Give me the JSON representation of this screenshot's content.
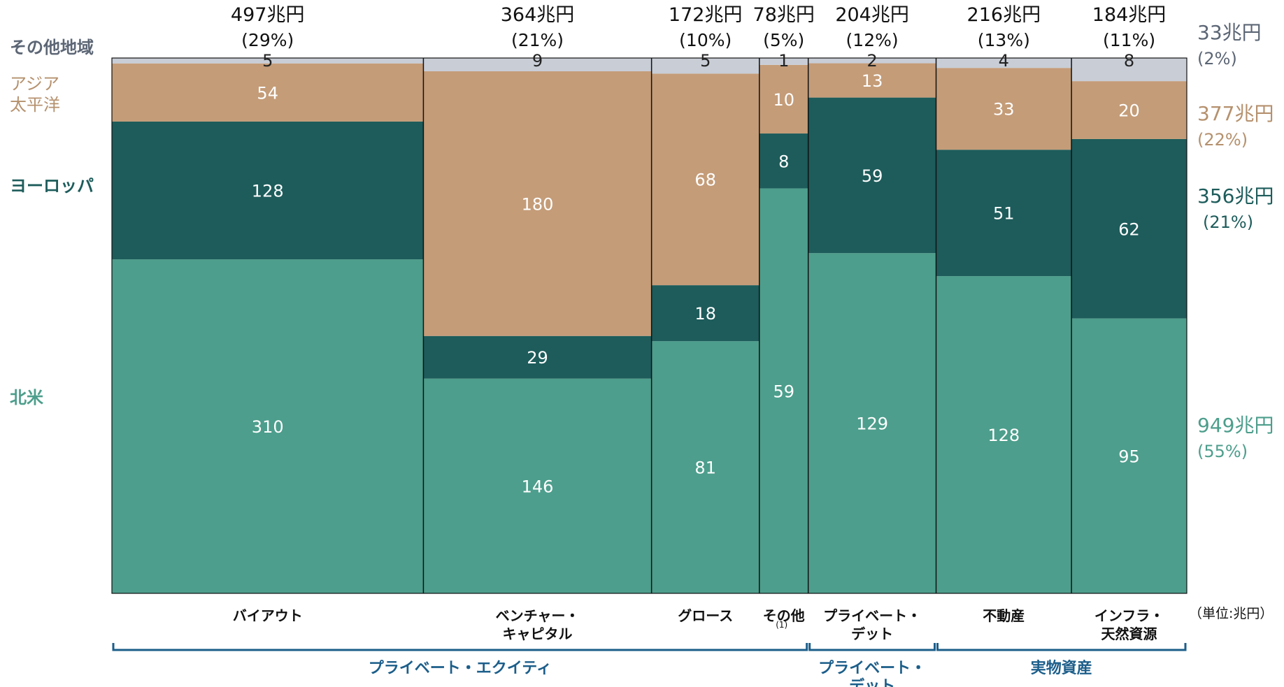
{
  "colors": {
    "north_america": "#4D9E8C",
    "europe": "#1D5C5B",
    "asia_pacific": "#C49C78",
    "other": "#C8CDD6",
    "bracket": "#1C5E8A"
  },
  "region_labels": {
    "other": "その他地域",
    "asia_pacific_line1": "アジア",
    "asia_pacific_line2": "太平洋",
    "europe": "ヨーロッパ",
    "north_america": "北米"
  },
  "side_totals": {
    "other": {
      "total": "33兆円",
      "pct": "(2%)"
    },
    "asia_pacific": {
      "total": "377兆円",
      "pct": "(22%)"
    },
    "europe": {
      "total": "356兆円",
      "pct": "(21%)"
    },
    "north_america": {
      "total": "949兆円",
      "pct": "(55%)"
    }
  },
  "unit_label": "（単位:兆円）",
  "footnote_mark": "(1)",
  "groups": [
    {
      "label_lines": [
        "プライベート・エクイティ"
      ],
      "from": 0,
      "to": 3
    },
    {
      "label_lines": [
        "プライベート・",
        "デット"
      ],
      "from": 4,
      "to": 4
    },
    {
      "label_lines": [
        "実物資産"
      ],
      "from": 5,
      "to": 6
    }
  ],
  "chart_data": {
    "type": "bar",
    "variant": "marimekko",
    "unit": "兆円",
    "categories": [
      {
        "label_lines": [
          "バイアウト"
        ],
        "total": "497兆円",
        "pct": "(29%)",
        "width_value": 497
      },
      {
        "label_lines": [
          "ベンチャー・",
          "キャピタル"
        ],
        "total": "364兆円",
        "pct": "(21%)",
        "width_value": 364
      },
      {
        "label_lines": [
          "グロース"
        ],
        "total": "172兆円",
        "pct": "(10%)",
        "width_value": 172
      },
      {
        "label_lines": [
          "その他"
        ],
        "total": "78兆円",
        "pct": "(5%)",
        "width_value": 78,
        "footnote": true
      },
      {
        "label_lines": [
          "プライベート・",
          "デット"
        ],
        "total": "204兆円",
        "pct": "(12%)",
        "width_value": 204
      },
      {
        "label_lines": [
          "不動産"
        ],
        "total": "216兆円",
        "pct": "(13%)",
        "width_value": 216
      },
      {
        "label_lines": [
          "インフラ・",
          "天然資源"
        ],
        "total": "184兆円",
        "pct": "(11%)",
        "width_value": 184
      }
    ],
    "series": [
      {
        "key": "north_america",
        "name": "北米",
        "values": [
          310,
          146,
          81,
          59,
          129,
          128,
          95
        ]
      },
      {
        "key": "europe",
        "name": "ヨーロッパ",
        "values": [
          128,
          29,
          18,
          8,
          59,
          51,
          62
        ]
      },
      {
        "key": "asia_pacific",
        "name": "アジア太平洋",
        "values": [
          54,
          180,
          68,
          10,
          13,
          33,
          20
        ]
      },
      {
        "key": "other",
        "name": "その他地域",
        "values": [
          5,
          9,
          5,
          1,
          2,
          4,
          8
        ]
      }
    ]
  }
}
